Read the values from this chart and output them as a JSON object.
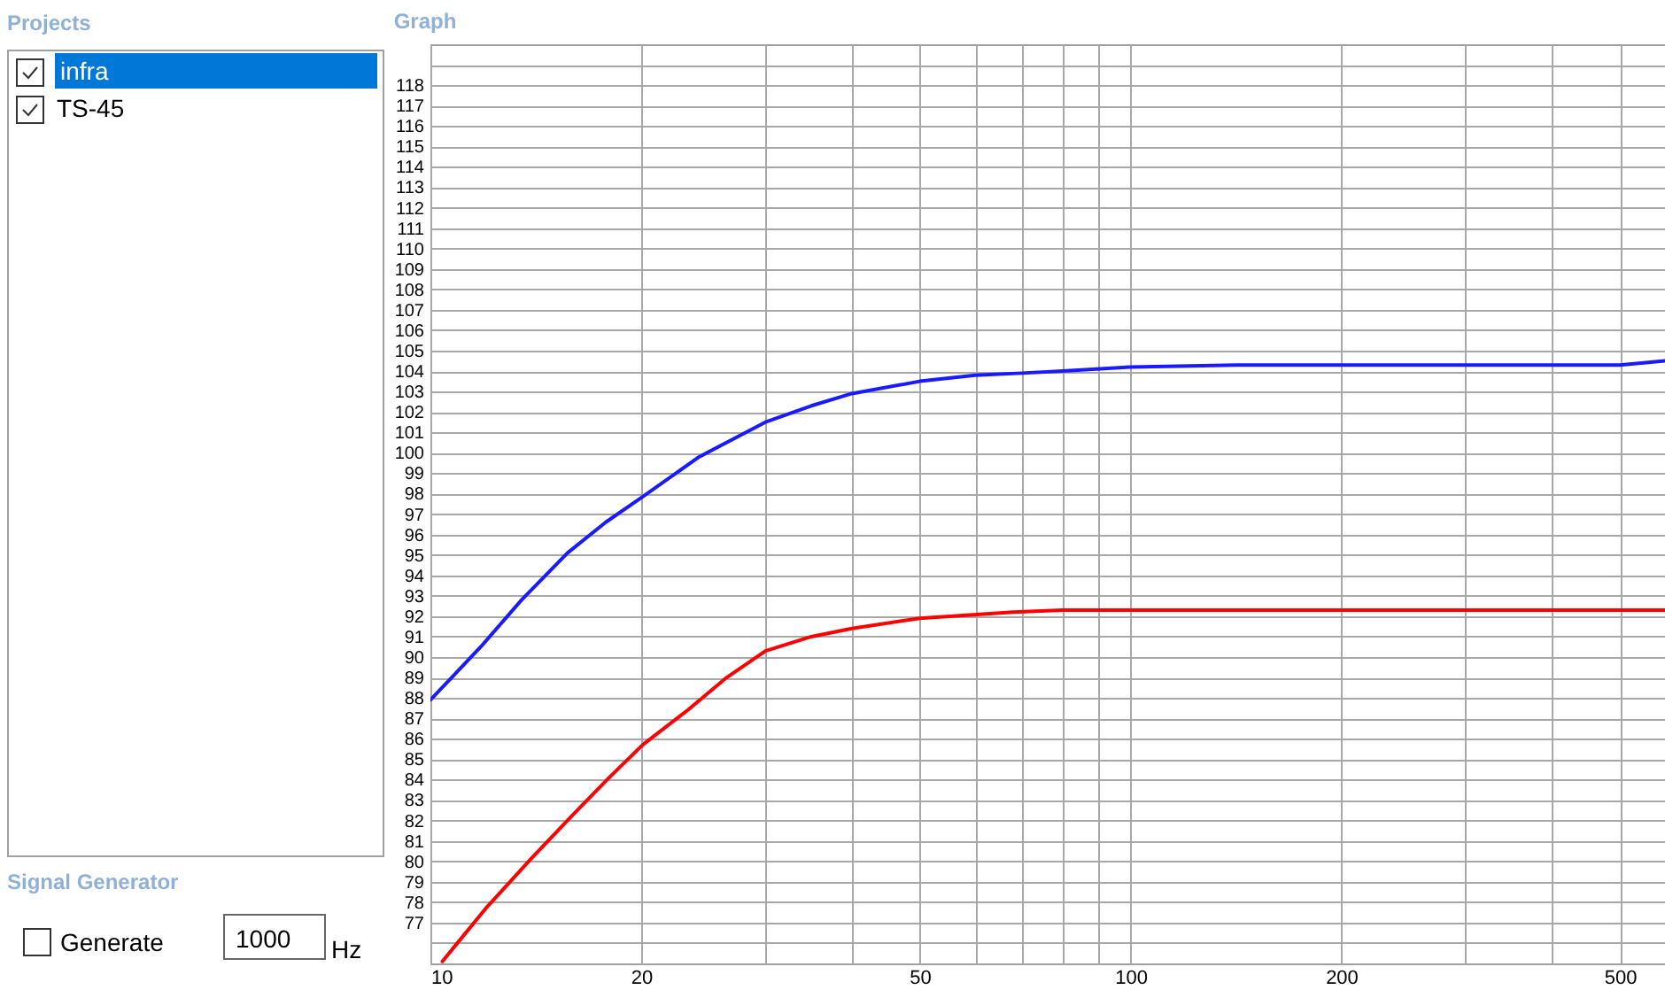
{
  "chart_data": {
    "type": "line",
    "title": "Graph",
    "annotations": [
      "Projects",
      "infra",
      "TS-45",
      "Signal Generator",
      "Generate",
      "1000",
      "Hz"
    ],
    "xlim": [
      10,
      580
    ],
    "ylim": [
      75,
      120
    ],
    "log": "x",
    "grid": true,
    "line_style": "solid",
    "xticks": [
      10,
      20,
      {
        "value": 30,
        "label": null
      },
      {
        "value": 40,
        "label": null
      },
      50,
      {
        "value": 60,
        "label": null
      },
      {
        "value": 70,
        "label": null
      },
      {
        "value": 80,
        "label": null
      },
      {
        "value": 90,
        "label": null
      },
      100,
      200,
      {
        "value": 300,
        "label": null
      },
      {
        "value": 400,
        "label": null
      },
      500
    ],
    "yticks": [
      {
        "value": 76,
        "label": null
      },
      77,
      78,
      79,
      80,
      81,
      82,
      83,
      84,
      85,
      86,
      87,
      88,
      89,
      90,
      91,
      92,
      93,
      94,
      95,
      96,
      97,
      98,
      99,
      100,
      101,
      102,
      103,
      104,
      105,
      106,
      107,
      108,
      109,
      110,
      111,
      112,
      113,
      114,
      115,
      116,
      117,
      118,
      {
        "value": 119,
        "label": null
      }
    ],
    "series": [
      {
        "color": "#1a1aff",
        "x": [
          10,
          11.8,
          13.5,
          15.7,
          17.8,
          20,
          24.2,
          30.1,
          35,
          40,
          50,
          60,
          70,
          80,
          100,
          142,
          200,
          300,
          400,
          500,
          580
        ],
        "values": [
          87.9,
          90.5,
          92.8,
          95.1,
          96.6,
          97.8,
          99.8,
          101.5,
          102.3,
          102.9,
          103.5,
          103.8,
          103.9,
          104.0,
          104.2,
          104.3,
          104.3,
          104.3,
          104.3,
          104.3,
          104.5
        ]
      },
      {
        "color": "#ff0000",
        "x": [
          10.4,
          12,
          13.9,
          16,
          18,
          20.1,
          23.3,
          26.5,
          30.1,
          35,
          40,
          50,
          68,
          80,
          100,
          200,
          300,
          400,
          500,
          580
        ],
        "values": [
          75.1,
          77.7,
          80.1,
          82.3,
          84.1,
          85.7,
          87.4,
          89.0,
          90.3,
          91.0,
          91.4,
          91.9,
          92.2,
          92.3,
          92.3,
          92.3,
          92.3,
          92.3,
          92.3,
          92.3
        ]
      }
    ]
  }
}
